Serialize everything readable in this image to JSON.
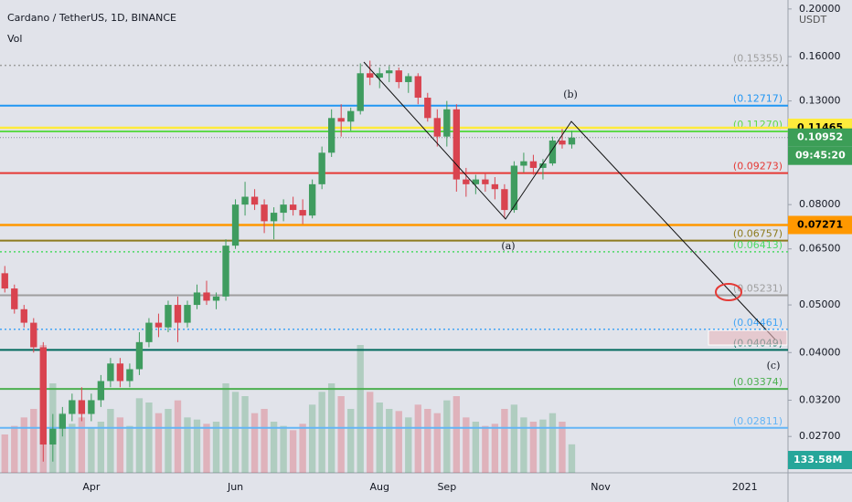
{
  "chart_data": {
    "type": "candlestick",
    "title": "Cardano / TetherUS, 1D, BINANCE",
    "subtitle": "Vol",
    "y_axis_label": "USDT",
    "log_scale": true,
    "ylim": [
      0.02258,
      0.2086
    ],
    "yticks": [
      {
        "value": 0.2,
        "label": "0.20000"
      },
      {
        "value": 0.16,
        "label": "0.16000"
      },
      {
        "value": 0.13,
        "label": "0.13000"
      },
      {
        "value": 0.08,
        "label": "0.08000"
      },
      {
        "value": 0.065,
        "label": "0.06500"
      },
      {
        "value": 0.05,
        "label": "0.05000"
      },
      {
        "value": 0.04,
        "label": "0.04000"
      },
      {
        "value": 0.032,
        "label": "0.03200"
      },
      {
        "value": 0.027,
        "label": "0.02700"
      }
    ],
    "up_color": "#3f9c5f",
    "down_color": "#d9434f",
    "categories": [
      null,
      null,
      null,
      null,
      null,
      null,
      null,
      null,
      null,
      "Apr",
      null,
      null,
      null,
      null,
      null,
      null,
      null,
      null,
      null,
      null,
      null,
      null,
      null,
      null,
      "Jun",
      null,
      null,
      null,
      null,
      null,
      null,
      null,
      null,
      null,
      null,
      null,
      null,
      null,
      null,
      "Aug",
      null,
      null,
      null,
      null,
      null,
      null,
      "Sep",
      null,
      null,
      null,
      null,
      null,
      null,
      null,
      null,
      null,
      null,
      null,
      null,
      null,
      null,
      null,
      "Nov",
      null,
      null,
      null,
      null,
      null,
      null,
      null,
      null,
      null,
      null,
      null,
      null,
      null,
      null,
      "2021",
      null,
      null,
      null,
      null
    ],
    "candles": [
      [
        0.058,
        0.06,
        0.053,
        0.054
      ],
      [
        0.054,
        0.055,
        0.048,
        0.049
      ],
      [
        0.049,
        0.05,
        0.045,
        0.046
      ],
      [
        0.046,
        0.047,
        0.04,
        0.041
      ],
      [
        0.041,
        0.042,
        0.024,
        0.026
      ],
      [
        0.026,
        0.03,
        0.024,
        0.028
      ],
      [
        0.028,
        0.031,
        0.027,
        0.03
      ],
      [
        0.03,
        0.033,
        0.029,
        0.032
      ],
      [
        0.032,
        0.034,
        0.029,
        0.03
      ],
      [
        0.03,
        0.033,
        0.029,
        0.032
      ],
      [
        0.032,
        0.036,
        0.031,
        0.035
      ],
      [
        0.035,
        0.039,
        0.034,
        0.038
      ],
      [
        0.038,
        0.039,
        0.034,
        0.035
      ],
      [
        0.035,
        0.038,
        0.034,
        0.037
      ],
      [
        0.037,
        0.044,
        0.036,
        0.042
      ],
      [
        0.042,
        0.047,
        0.041,
        0.046
      ],
      [
        0.046,
        0.048,
        0.043,
        0.045
      ],
      [
        0.045,
        0.051,
        0.044,
        0.05
      ],
      [
        0.05,
        0.052,
        0.042,
        0.046
      ],
      [
        0.046,
        0.051,
        0.045,
        0.05
      ],
      [
        0.05,
        0.055,
        0.049,
        0.053
      ],
      [
        0.053,
        0.056,
        0.05,
        0.051
      ],
      [
        0.051,
        0.053,
        0.049,
        0.052
      ],
      [
        0.052,
        0.068,
        0.051,
        0.066
      ],
      [
        0.066,
        0.082,
        0.065,
        0.08
      ],
      [
        0.08,
        0.089,
        0.076,
        0.083
      ],
      [
        0.083,
        0.086,
        0.078,
        0.08
      ],
      [
        0.08,
        0.082,
        0.07,
        0.074
      ],
      [
        0.074,
        0.079,
        0.068,
        0.077
      ],
      [
        0.077,
        0.082,
        0.074,
        0.08
      ],
      [
        0.08,
        0.083,
        0.076,
        0.078
      ],
      [
        0.078,
        0.082,
        0.073,
        0.076
      ],
      [
        0.076,
        0.09,
        0.075,
        0.088
      ],
      [
        0.088,
        0.105,
        0.086,
        0.102
      ],
      [
        0.102,
        0.125,
        0.1,
        0.12
      ],
      [
        0.12,
        0.128,
        0.11,
        0.118
      ],
      [
        0.118,
        0.126,
        0.113,
        0.124
      ],
      [
        0.124,
        0.155,
        0.122,
        0.148
      ],
      [
        0.148,
        0.157,
        0.14,
        0.145
      ],
      [
        0.145,
        0.152,
        0.138,
        0.148
      ],
      [
        0.148,
        0.153,
        0.142,
        0.15
      ],
      [
        0.15,
        0.152,
        0.138,
        0.142
      ],
      [
        0.142,
        0.148,
        0.135,
        0.146
      ],
      [
        0.146,
        0.148,
        0.128,
        0.132
      ],
      [
        0.132,
        0.135,
        0.118,
        0.12
      ],
      [
        0.12,
        0.125,
        0.105,
        0.11
      ],
      [
        0.11,
        0.13,
        0.105,
        0.125
      ],
      [
        0.125,
        0.128,
        0.085,
        0.09
      ],
      [
        0.09,
        0.095,
        0.083,
        0.088
      ],
      [
        0.088,
        0.092,
        0.084,
        0.09
      ],
      [
        0.09,
        0.093,
        0.085,
        0.088
      ],
      [
        0.088,
        0.091,
        0.082,
        0.086
      ],
      [
        0.086,
        0.088,
        0.075,
        0.078
      ],
      [
        0.078,
        0.098,
        0.077,
        0.096
      ],
      [
        0.096,
        0.102,
        0.093,
        0.098
      ],
      [
        0.098,
        0.101,
        0.092,
        0.095
      ],
      [
        0.095,
        0.099,
        0.09,
        0.097
      ],
      [
        0.097,
        0.11,
        0.096,
        0.108
      ],
      [
        0.108,
        0.114,
        0.104,
        0.106
      ],
      [
        0.106,
        0.113,
        0.104,
        0.1095
      ],
      null,
      null,
      null,
      null,
      null,
      null,
      null,
      null,
      null,
      null,
      null,
      null,
      null,
      null,
      null,
      null,
      null,
      null,
      null,
      null,
      null,
      null
    ],
    "volume": {
      "values": [
        180,
        220,
        260,
        300,
        600,
        420,
        280,
        230,
        260,
        210,
        240,
        300,
        260,
        220,
        350,
        330,
        280,
        300,
        340,
        260,
        250,
        230,
        240,
        420,
        380,
        360,
        280,
        300,
        240,
        220,
        200,
        230,
        320,
        380,
        420,
        360,
        300,
        600,
        380,
        330,
        300,
        290,
        260,
        320,
        300,
        280,
        340,
        360,
        260,
        240,
        220,
        230,
        300,
        320,
        260,
        240,
        250,
        280,
        240,
        133.58,
        null,
        null,
        null,
        null,
        null,
        null,
        null,
        null,
        null,
        null,
        null,
        null,
        null,
        null,
        null,
        null,
        null,
        null,
        null,
        null,
        null,
        null
      ],
      "last_label": "133.58M",
      "label_color": "#26a69a"
    },
    "levels": [
      {
        "value": 0.15355,
        "label": "(0.15355)",
        "color": "#9e9e9e",
        "style": "dotted"
      },
      {
        "value": 0.12717,
        "label": "(0.12717)",
        "color": "#2196f3",
        "style": "solid"
      },
      {
        "value": 0.1127,
        "label": "(0.11270)",
        "color": "#5fd94a",
        "style": "solid"
      },
      {
        "value": 0.09273,
        "label": "(0.09273)",
        "color": "#e53935",
        "style": "solid"
      },
      {
        "value": 0.06757,
        "label": "(0.06757)",
        "color": "#8d7b1e",
        "style": "solid"
      },
      {
        "value": 0.06413,
        "label": "(0.06413)",
        "color": "#4cd964",
        "style": "dotted"
      },
      {
        "value": 0.05231,
        "label": "(0.05231)",
        "color": "#9e9e9e",
        "style": "solid"
      },
      {
        "value": 0.04461,
        "label": "(0.04461)",
        "color": "#42a5f5",
        "style": "dotted"
      },
      {
        "value": 0.04049,
        "label": "(0.04049)",
        "color": "#00695c",
        "style": "solid"
      },
      {
        "value": 0.03374,
        "label": "(0.03374)",
        "color": "#4caf50",
        "style": "solid"
      },
      {
        "value": 0.02811,
        "label": "(0.02811)",
        "color": "#64b5f6",
        "style": "solid"
      }
    ],
    "price_badges": [
      {
        "value": 0.11465,
        "label": "0.11465",
        "color": "#ffeb3b",
        "text_color": "#000000",
        "line_style": "solid"
      },
      {
        "value": 0.10952,
        "label": "0.10952",
        "color": "#3c9e57",
        "text_color": "#ffffff",
        "line_style": "dotted"
      },
      {
        "value": 0.07271,
        "label": "0.07271",
        "color": "#ff9800",
        "text_color": "#000000",
        "line_style": "solid"
      }
    ],
    "countdown": "09:45:20",
    "annotations": [
      "(b)",
      "(a)",
      "(c)"
    ]
  }
}
